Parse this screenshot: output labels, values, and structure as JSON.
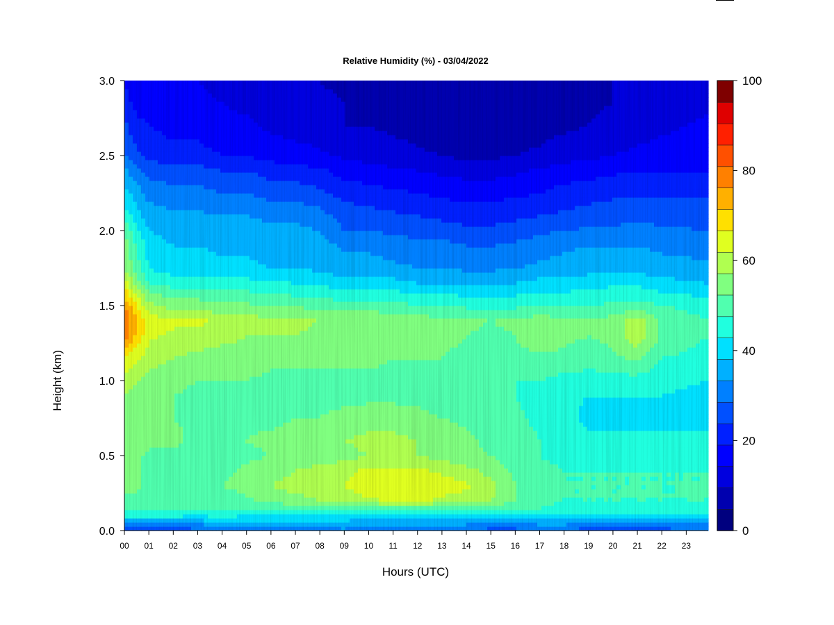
{
  "chart_data": {
    "type": "heatmap",
    "title": "Relative Humidity (%) - 03/04/2022",
    "xlabel": "Hours (UTC)",
    "ylabel": "Height (km)",
    "x_ticks": [
      "00",
      "01",
      "02",
      "03",
      "04",
      "05",
      "06",
      "07",
      "08",
      "09",
      "10",
      "11",
      "12",
      "13",
      "14",
      "15",
      "16",
      "17",
      "18",
      "19",
      "20",
      "21",
      "22",
      "23"
    ],
    "xlim": [
      0,
      23.9
    ],
    "y_ticks": [
      "0.0",
      "0.5",
      "1.0",
      "1.5",
      "2.0",
      "2.5",
      "3.0"
    ],
    "ylim": [
      0,
      3.0
    ],
    "colorbar": {
      "ticks": [
        "0",
        "20",
        "40",
        "60",
        "80",
        "100"
      ],
      "range": [
        0,
        100
      ],
      "levels": 20,
      "colors": [
        "#00007F",
        "#0000AF",
        "#0000DF",
        "#0000FF",
        "#0020FF",
        "#0050FF",
        "#0080FF",
        "#00B0FF",
        "#00E0FF",
        "#20FFDF",
        "#50FFAF",
        "#80FF80",
        "#B0FF50",
        "#E0FF20",
        "#FFE000",
        "#FFB000",
        "#FF8000",
        "#FF5000",
        "#FF2000",
        "#DF0000",
        "#7F0000"
      ]
    },
    "height_km": [
      0.0,
      0.05,
      0.1,
      0.15,
      0.2,
      0.3,
      0.4,
      0.5,
      0.6,
      0.75,
      0.9,
      1.0,
      1.15,
      1.3,
      1.4,
      1.5,
      1.65,
      1.75,
      1.9,
      2.0,
      2.1,
      2.25,
      2.4,
      2.5,
      2.7,
      2.85,
      3.0
    ],
    "hours_utc": [
      0,
      0.5,
      1,
      2,
      3,
      4,
      5,
      6,
      7,
      8,
      9,
      10,
      11,
      12,
      13,
      14,
      15,
      16,
      17,
      18,
      19,
      20,
      21,
      22,
      23.9
    ],
    "rh_percent": [
      [
        22,
        26,
        26,
        27,
        28,
        30,
        30,
        31,
        31,
        33,
        34,
        30,
        31,
        31,
        31,
        30,
        28,
        28,
        31,
        31,
        26,
        24,
        26,
        28,
        30
      ],
      [
        33,
        34,
        36,
        36,
        36,
        38,
        38,
        38,
        38,
        38,
        38,
        36,
        36,
        36,
        36,
        36,
        34,
        34,
        36,
        36,
        34,
        32,
        33,
        34,
        36
      ],
      [
        46,
        48,
        46,
        46,
        45,
        46,
        45,
        44,
        44,
        44,
        44,
        42,
        42,
        42,
        42,
        42,
        42,
        42,
        42,
        42,
        42,
        42,
        42,
        44,
        44
      ],
      [
        52,
        52,
        50,
        50,
        50,
        50,
        52,
        52,
        52,
        52,
        52,
        52,
        54,
        54,
        52,
        52,
        52,
        50,
        50,
        48,
        48,
        48,
        48,
        48,
        48
      ],
      [
        54,
        54,
        53,
        52,
        52,
        52,
        54,
        56,
        58,
        60,
        62,
        64,
        66,
        66,
        64,
        62,
        60,
        55,
        52,
        50,
        50,
        50,
        50,
        50,
        50
      ],
      [
        56,
        56,
        54,
        54,
        54,
        55,
        57,
        60,
        62,
        64,
        65,
        68,
        70,
        70,
        68,
        66,
        62,
        55,
        52,
        50,
        50,
        50,
        50,
        50,
        50
      ],
      [
        56,
        56,
        54,
        54,
        54,
        54,
        56,
        58,
        60,
        62,
        64,
        66,
        66,
        66,
        64,
        62,
        58,
        54,
        52,
        50,
        50,
        50,
        50,
        50,
        50
      ],
      [
        58,
        56,
        54,
        54,
        52,
        52,
        54,
        55,
        56,
        57,
        58,
        60,
        60,
        60,
        58,
        56,
        55,
        52,
        50,
        48,
        48,
        48,
        48,
        48,
        48
      ],
      [
        60,
        58,
        56,
        56,
        54,
        54,
        55,
        56,
        57,
        58,
        60,
        62,
        62,
        60,
        58,
        56,
        54,
        52,
        50,
        48,
        46,
        46,
        46,
        46,
        46
      ],
      [
        60,
        58,
        55,
        55,
        54,
        54,
        54,
        54,
        55,
        55,
        56,
        57,
        57,
        56,
        55,
        54,
        53,
        51,
        49,
        46,
        44,
        44,
        44,
        44,
        44
      ],
      [
        60,
        58,
        56,
        55,
        54,
        54,
        54,
        54,
        54,
        54,
        54,
        54,
        54,
        54,
        53,
        52,
        52,
        50,
        48,
        46,
        45,
        45,
        45,
        45,
        44
      ],
      [
        62,
        60,
        58,
        56,
        55,
        55,
        55,
        54,
        54,
        54,
        54,
        54,
        54,
        54,
        53,
        52,
        52,
        50,
        50,
        48,
        47,
        48,
        48,
        46,
        45
      ],
      [
        70,
        66,
        62,
        60,
        58,
        57,
        57,
        56,
        56,
        56,
        56,
        56,
        55,
        55,
        55,
        54,
        54,
        54,
        54,
        54,
        53,
        54,
        56,
        50,
        48
      ],
      [
        82,
        74,
        66,
        64,
        64,
        62,
        60,
        60,
        60,
        58,
        58,
        58,
        57,
        56,
        56,
        55,
        54,
        55,
        58,
        56,
        55,
        56,
        64,
        54,
        50
      ],
      [
        84,
        76,
        68,
        66,
        66,
        64,
        62,
        62,
        62,
        60,
        60,
        60,
        58,
        58,
        56,
        56,
        55,
        56,
        58,
        56,
        56,
        57,
        64,
        54,
        50
      ],
      [
        80,
        70,
        62,
        58,
        58,
        56,
        56,
        55,
        54,
        54,
        52,
        52,
        52,
        50,
        50,
        49,
        49,
        49,
        50,
        50,
        50,
        51,
        52,
        50,
        48
      ],
      [
        68,
        58,
        50,
        48,
        48,
        47,
        47,
        46,
        45,
        44,
        42,
        42,
        42,
        40,
        40,
        40,
        40,
        40,
        42,
        42,
        43,
        44,
        44,
        42,
        40
      ],
      [
        60,
        52,
        45,
        42,
        42,
        41,
        41,
        40,
        40,
        39,
        37,
        37,
        36,
        35,
        35,
        34,
        34,
        35,
        36,
        37,
        38,
        38,
        38,
        37,
        36
      ],
      [
        58,
        50,
        43,
        40,
        40,
        39,
        39,
        38,
        38,
        37,
        34,
        34,
        33,
        32,
        32,
        30,
        30,
        31,
        33,
        34,
        35,
        35,
        35,
        34,
        33
      ],
      [
        54,
        46,
        40,
        38,
        38,
        38,
        38,
        36,
        36,
        35,
        30,
        30,
        29,
        28,
        27,
        26,
        26,
        27,
        29,
        30,
        31,
        31,
        32,
        31,
        30
      ],
      [
        48,
        42,
        38,
        36,
        36,
        35,
        35,
        34,
        34,
        32,
        28,
        27,
        26,
        25,
        24,
        23,
        23,
        24,
        25,
        26,
        27,
        28,
        29,
        28,
        28
      ],
      [
        42,
        38,
        33,
        32,
        32,
        30,
        30,
        28,
        28,
        26,
        23,
        22,
        21,
        20,
        19,
        18,
        18,
        19,
        20,
        22,
        23,
        24,
        24,
        24,
        24
      ],
      [
        36,
        32,
        28,
        27,
        27,
        25,
        25,
        23,
        22,
        21,
        18,
        17,
        16,
        15,
        14,
        13,
        13,
        14,
        16,
        17,
        18,
        19,
        20,
        20,
        20
      ],
      [
        30,
        26,
        24,
        22,
        22,
        20,
        20,
        18,
        17,
        16,
        14,
        13,
        12,
        11,
        10,
        9,
        9,
        10,
        11,
        13,
        14,
        15,
        16,
        17,
        18
      ],
      [
        26,
        22,
        20,
        18,
        18,
        16,
        16,
        14,
        13,
        12,
        10,
        10,
        9,
        8,
        7,
        6,
        6,
        7,
        8,
        9,
        10,
        12,
        13,
        14,
        16
      ],
      [
        22,
        18,
        17,
        16,
        16,
        15,
        14,
        13,
        12,
        11,
        10,
        9,
        8,
        7,
        6,
        6,
        6,
        6,
        7,
        8,
        9,
        10,
        11,
        12,
        14
      ],
      [
        20,
        16,
        15,
        15,
        15,
        14,
        13,
        12,
        11,
        10,
        9,
        8,
        7,
        7,
        6,
        6,
        6,
        6,
        7,
        8,
        9,
        10,
        11,
        12,
        13
      ]
    ]
  }
}
